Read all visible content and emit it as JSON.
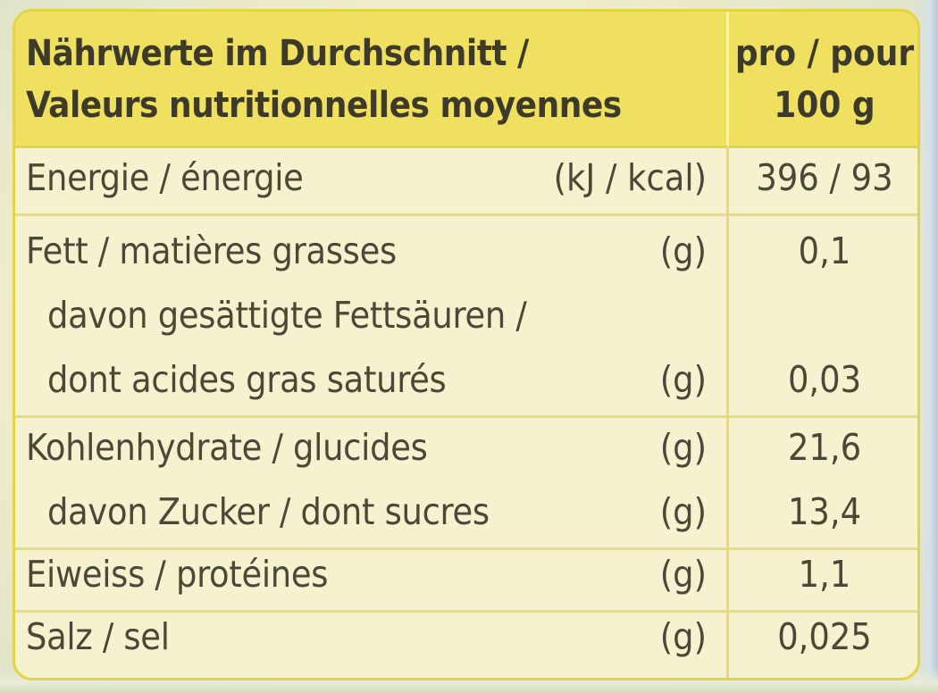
{
  "header": {
    "title_de": "Nährwerte im Durchschnitt /",
    "title_fr": "Valeurs nutritionnelles moyennes",
    "per_line1": "pro / pour",
    "per_line2": "100 g"
  },
  "rows": [
    {
      "label": "Energie / énergie",
      "unit": "(kJ / kcal)",
      "value": "396 / 93"
    },
    {
      "label": "Fett / matières grasses",
      "unit": "(g)",
      "value": "0,1"
    },
    {
      "label_line1": "davon gesättigte Fettsäuren /",
      "label_line2": "dont acides gras saturés",
      "unit": "(g)",
      "value": "0,03"
    },
    {
      "label": "Kohlenhydrate / glucides",
      "unit": "(g)",
      "value": "21,6"
    },
    {
      "label": "davon Zucker / dont sucres",
      "unit": "(g)",
      "value": "13,4"
    },
    {
      "label": "Eiweiss / protéines",
      "unit": "(g)",
      "value": "1,1"
    },
    {
      "label": "Salz / sel",
      "unit": "(g)",
      "value": "0,025"
    }
  ],
  "colors": {
    "header_bg": "#efe060",
    "border": "#e3d447",
    "body_bg": "#f6f2d0",
    "text": "#4c4838"
  }
}
